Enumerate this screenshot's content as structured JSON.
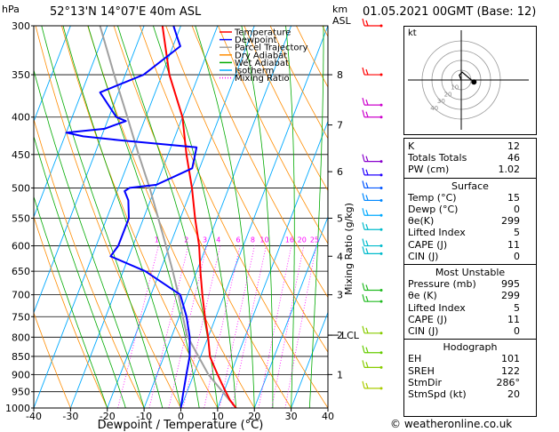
{
  "header": {
    "location": "52°13'N  14°07'E  40m  ASL",
    "datetime": "01.05.2021  00GMT  (Base: 12)",
    "hpa_label": "hPa",
    "km_label": "km",
    "asl_label": "ASL",
    "footer": "© weatheronline.co.uk"
  },
  "chart_data": {
    "type": "skew-t",
    "xlabel": "Dewpoint / Temperature (°C)",
    "ylabel_right": "Mixing Ratio (g/kg)",
    "xlim": [
      -40,
      40
    ],
    "ylim": [
      1000,
      300
    ],
    "pressure_ticks": [
      300,
      350,
      400,
      450,
      500,
      550,
      600,
      650,
      700,
      750,
      800,
      850,
      900,
      950,
      1000
    ],
    "temp_ticks": [
      -40,
      -30,
      -20,
      -10,
      0,
      10,
      20,
      30,
      40
    ],
    "km_ticks": [
      {
        "km": "8",
        "p": 350
      },
      {
        "km": "7",
        "p": 410
      },
      {
        "km": "6",
        "p": 475
      },
      {
        "km": "5",
        "p": 550
      },
      {
        "km": "4",
        "p": 620
      },
      {
        "km": "3",
        "p": 700
      },
      {
        "km": "2",
        "p": 795
      },
      {
        "km": "1",
        "p": 900
      }
    ],
    "lcl_label": "LCL",
    "lcl_p": 795,
    "mixing_ratio_labels": [
      "1",
      "2",
      "3",
      "4",
      "6",
      "8",
      "10",
      "16",
      "20",
      "25"
    ],
    "mixing_ratios": [
      1,
      2,
      3,
      4,
      6,
      8,
      10,
      16,
      20,
      25
    ],
    "legend": [
      "Temperature",
      "Dewpoint",
      "Parcel Trajectory",
      "Dry Adiabat",
      "Wet Adiabat",
      "Isotherm",
      "Mixing Ratio"
    ],
    "colors": {
      "temperature": "#ff0000",
      "dewpoint": "#0000ff",
      "parcel": "#a0a0a0",
      "dry_adiabat": "#ff8c00",
      "wet_adiabat": "#00aa00",
      "isotherm": "#00aaff",
      "mixing_ratio": "#ff00ff"
    },
    "temperature": [
      [
        1000,
        15
      ],
      [
        975,
        12.5
      ],
      [
        950,
        10.5
      ],
      [
        925,
        8.5
      ],
      [
        900,
        6.5
      ],
      [
        875,
        4.5
      ],
      [
        850,
        2.5
      ],
      [
        800,
        0
      ],
      [
        750,
        -3
      ],
      [
        700,
        -6
      ],
      [
        650,
        -9
      ],
      [
        600,
        -12
      ],
      [
        550,
        -16
      ],
      [
        500,
        -20
      ],
      [
        450,
        -25
      ],
      [
        400,
        -30
      ],
      [
        350,
        -38
      ],
      [
        300,
        -45
      ]
    ],
    "dewpoint": [
      [
        1000,
        0
      ],
      [
        950,
        -1
      ],
      [
        900,
        -2
      ],
      [
        850,
        -3
      ],
      [
        800,
        -5
      ],
      [
        750,
        -8
      ],
      [
        700,
        -12
      ],
      [
        650,
        -24
      ],
      [
        620,
        -35
      ],
      [
        600,
        -34
      ],
      [
        550,
        -34
      ],
      [
        520,
        -36
      ],
      [
        505,
        -38
      ],
      [
        500,
        -37
      ],
      [
        495,
        -30
      ],
      [
        470,
        -22
      ],
      [
        440,
        -23
      ],
      [
        430,
        -45
      ],
      [
        425,
        -55
      ],
      [
        420,
        -60
      ],
      [
        415,
        -50
      ],
      [
        405,
        -45
      ],
      [
        400,
        -48
      ],
      [
        370,
        -55
      ],
      [
        350,
        -45
      ],
      [
        320,
        -38
      ],
      [
        310,
        -40
      ],
      [
        300,
        -42
      ]
    ],
    "parcel": [
      [
        1000,
        15
      ],
      [
        900,
        4
      ],
      [
        795,
        -6
      ],
      [
        750,
        -9
      ],
      [
        700,
        -12.5
      ],
      [
        650,
        -16.5
      ],
      [
        600,
        -21
      ],
      [
        550,
        -26
      ],
      [
        500,
        -31.5
      ],
      [
        450,
        -38
      ],
      [
        400,
        -45
      ],
      [
        350,
        -53
      ],
      [
        300,
        -62
      ]
    ],
    "wind_barbs": [
      {
        "p": 300,
        "color": "#ff0000"
      },
      {
        "p": 350,
        "color": "#ff0000"
      },
      {
        "p": 385,
        "color": "#cc00cc"
      },
      {
        "p": 400,
        "color": "#cc00cc"
      },
      {
        "p": 460,
        "color": "#8800cc"
      },
      {
        "p": 480,
        "color": "#2200ff"
      },
      {
        "p": 500,
        "color": "#0055ff"
      },
      {
        "p": 520,
        "color": "#0088ff"
      },
      {
        "p": 545,
        "color": "#00aaff"
      },
      {
        "p": 570,
        "color": "#00bbcc"
      },
      {
        "p": 600,
        "color": "#00bbcc"
      },
      {
        "p": 615,
        "color": "#00bbcc"
      },
      {
        "p": 690,
        "color": "#22bb22"
      },
      {
        "p": 715,
        "color": "#22bb22"
      },
      {
        "p": 790,
        "color": "#88cc00"
      },
      {
        "p": 840,
        "color": "#66cc00"
      },
      {
        "p": 880,
        "color": "#88cc00"
      },
      {
        "p": 940,
        "color": "#aacc00"
      }
    ],
    "hodograph": {
      "label": "kt",
      "ring_labels": [
        "10",
        "20",
        "30",
        "40"
      ],
      "points": [
        [
          0.0,
          0.0
        ],
        [
          -0.2,
          0.5
        ],
        [
          0.1,
          0.8
        ],
        [
          0.8,
          0.2
        ],
        [
          1.3,
          -0.2
        ]
      ]
    }
  },
  "indices": {
    "top": [
      {
        "k": "K",
        "v": "12"
      },
      {
        "k": "Totals Totals",
        "v": "46"
      },
      {
        "k": "PW (cm)",
        "v": "1.02"
      }
    ],
    "surface_title": "Surface",
    "surface": [
      {
        "k": "Temp (°C)",
        "v": "15"
      },
      {
        "k": "Dewp (°C)",
        "v": "0"
      },
      {
        "k": "θe(K)",
        "v": "299"
      },
      {
        "k": "Lifted Index",
        "v": "5"
      },
      {
        "k": "CAPE (J)",
        "v": "11"
      },
      {
        "k": "CIN (J)",
        "v": "0"
      }
    ],
    "unstable_title": "Most Unstable",
    "unstable": [
      {
        "k": "Pressure (mb)",
        "v": "995"
      },
      {
        "k": "θe (K)",
        "v": "299"
      },
      {
        "k": "Lifted Index",
        "v": "5"
      },
      {
        "k": "CAPE (J)",
        "v": "11"
      },
      {
        "k": "CIN (J)",
        "v": "0"
      }
    ],
    "hodo_title": "Hodograph",
    "hodo": [
      {
        "k": "EH",
        "v": "101"
      },
      {
        "k": "SREH",
        "v": "122"
      },
      {
        "k": "StmDir",
        "v": "286°"
      },
      {
        "k": "StmSpd (kt)",
        "v": "20"
      }
    ]
  }
}
